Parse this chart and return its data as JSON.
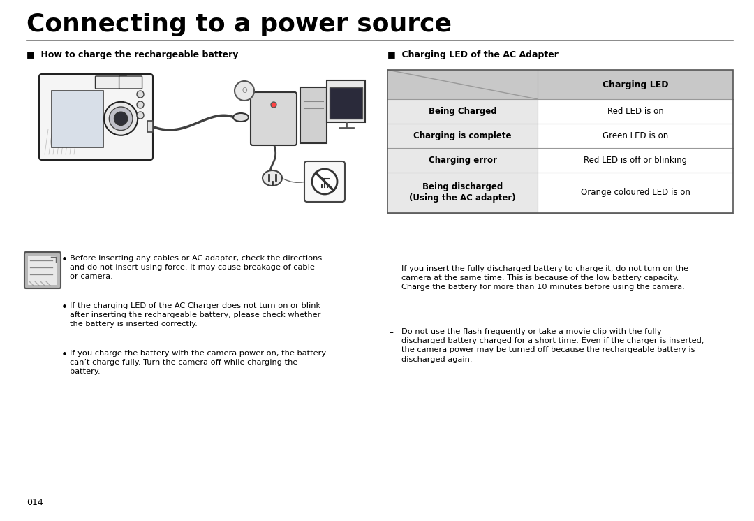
{
  "title": "Connecting to a power source",
  "bg_color": "#ffffff",
  "section_left_header": "■  How to charge the rechargeable battery",
  "section_right_header": "■  Charging LED of the AC Adapter",
  "table_header_col2": "Charging LED",
  "table_rows": [
    [
      "Being Charged",
      "Red LED is on"
    ],
    [
      "Charging is complete",
      "Green LED is on"
    ],
    [
      "Charging error",
      "Red LED is off or blinking"
    ],
    [
      "Being discharged\n(Using the AC adapter)",
      "Orange coloured LED is on"
    ]
  ],
  "table_header_bg": "#c8c8c8",
  "table_col1_bg": "#e8e8e8",
  "table_col2_bg": "#ffffff",
  "bullet_points_left": [
    "Before inserting any cables or AC adapter, check the directions\nand do not insert using force. It may cause breakage of cable\nor camera.",
    "If the charging LED of the AC Charger does not turn on or blink\nafter inserting the rechargeable battery, please check whether\nthe battery is inserted correctly.",
    "If you charge the battery with the camera power on, the battery\ncan’t charge fully. Turn the camera off while charging the\nbattery."
  ],
  "dash_points_right": [
    "If you insert the fully discharged battery to charge it, do not turn on the\ncamera at the same time. This is because of the low battery capacity.\nCharge the battery for more than 10 minutes before using the camera.",
    "Do not use the flash frequently or take a movie clip with the fully\ndischarged battery charged for a short time. Even if the charger is inserted,\nthe camera power may be turned off because the rechargeable battery is\ndischarged again."
  ],
  "page_number": "014"
}
